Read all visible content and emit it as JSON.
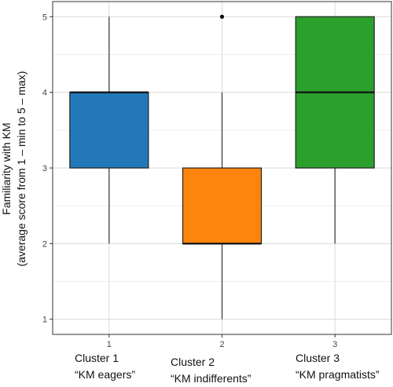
{
  "chart_data": {
    "type": "boxplot",
    "title": "",
    "xlabel": "",
    "ylabel": "Familiarity with KM",
    "ylabel_sub": "(average score from 1 – min to 5 – max)",
    "ylim": [
      0.8,
      5.2
    ],
    "yticks": [
      "1",
      "2",
      "3",
      "4",
      "5"
    ],
    "grid": true,
    "categories": [
      "1",
      "2",
      "3"
    ],
    "boxes": [
      {
        "category": "1",
        "min": 2,
        "q1": 3,
        "median": 4,
        "q3": 4,
        "max": 5,
        "outliers": [],
        "color": "#2378b9"
      },
      {
        "category": "2",
        "min": 1,
        "q1": 2,
        "median": 2,
        "q3": 3,
        "max": 4,
        "outliers": [
          5
        ],
        "color": "#fd850d"
      },
      {
        "category": "3",
        "min": 2,
        "q1": 3,
        "median": 4,
        "q3": 5,
        "max": 5,
        "outliers": [],
        "color": "#2ca02c"
      }
    ]
  },
  "captions": [
    {
      "line1": "Cluster 1",
      "line2": "“KM eagers”"
    },
    {
      "line1": "Cluster 2",
      "line2": "“KM indifferents”"
    },
    {
      "line1": "Cluster 3",
      "line2": "“KM pragmatists”"
    }
  ]
}
